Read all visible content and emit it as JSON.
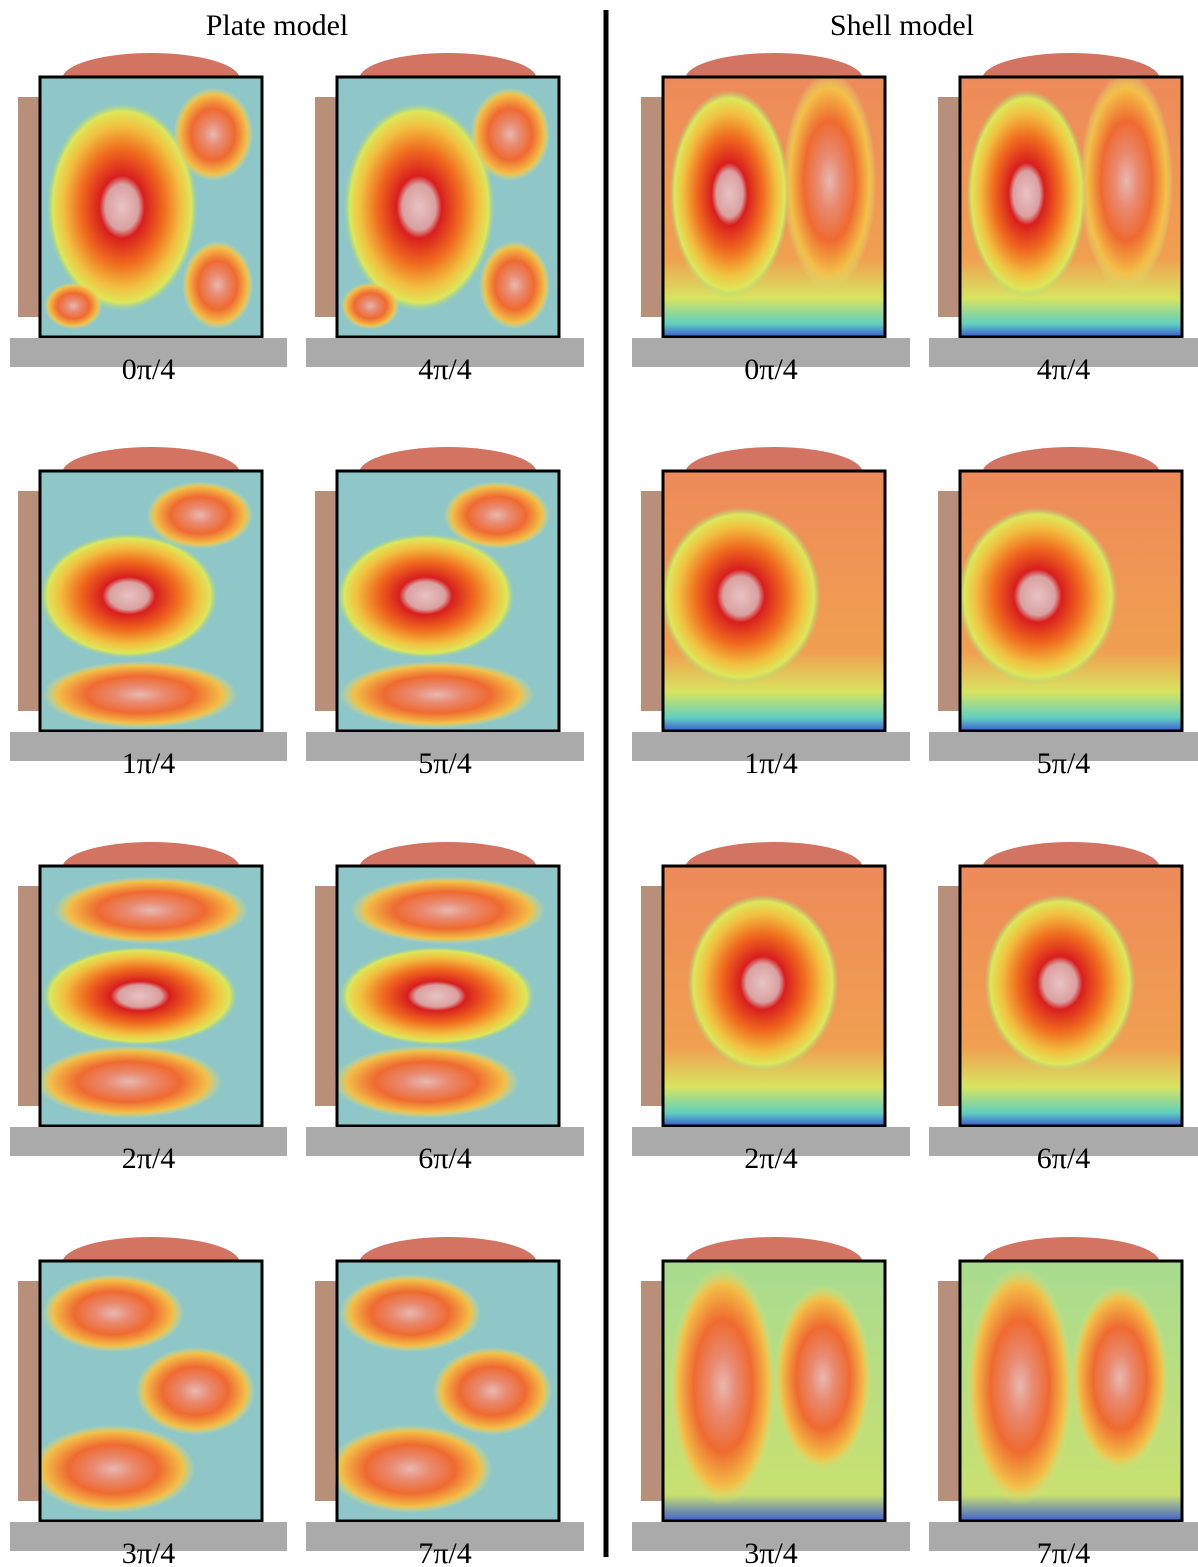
{
  "headers": {
    "plate": "Plate model",
    "shell": "Shell model"
  },
  "panels": {
    "plate": [
      [
        "0π/4",
        "4π/4"
      ],
      [
        "1π/4",
        "5π/4"
      ],
      [
        "2π/4",
        "6π/4"
      ],
      [
        "3π/4",
        "7π/4"
      ]
    ],
    "shell": [
      [
        "0π/4",
        "4π/4"
      ],
      [
        "1π/4",
        "5π/4"
      ],
      [
        "2π/4",
        "6π/4"
      ],
      [
        "3π/4",
        "7π/4"
      ]
    ]
  }
}
